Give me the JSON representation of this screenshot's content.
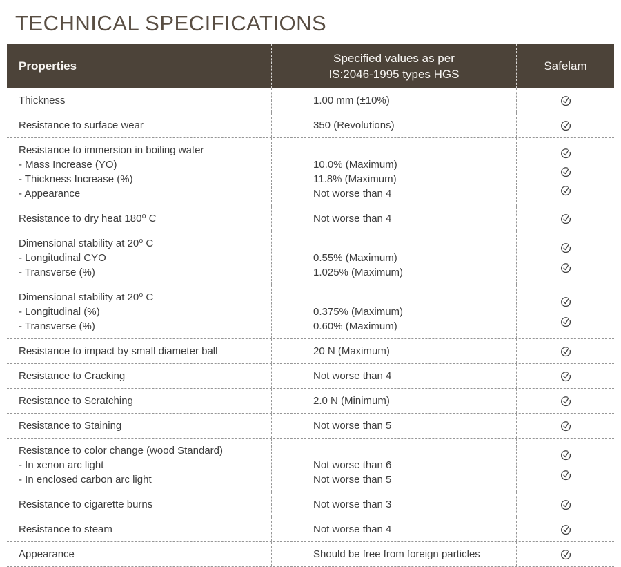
{
  "page": {
    "title": "TECHNICAL SPECIFICATIONS"
  },
  "colors": {
    "header_bg": "#4c4339",
    "header_text": "#f7f5f2",
    "title_color": "#594e43",
    "body_text": "#3d3d3d",
    "divider": "#979797",
    "check_color": "#404040"
  },
  "table": {
    "headers": {
      "properties": "Properties",
      "specified_line1": "Specified values as per",
      "specified_line2": "IS:2046-1995 types HGS",
      "safelam": "Safelam"
    },
    "rows": [
      {
        "property": [
          "Thickness"
        ],
        "value": [
          "1.00 mm (±10%)"
        ],
        "checks": 1
      },
      {
        "property": [
          "Resistance to surface wear"
        ],
        "value": [
          "350 (Revolutions)"
        ],
        "checks": 1
      },
      {
        "property": [
          "Resistance to immersion in boiling water",
          "- Mass Increase (YO)",
          "- Thickness Increase (%)",
          "- Appearance"
        ],
        "value": [
          "",
          "10.0% (Maximum)",
          "11.8% (Maximum)",
          "Not worse than 4"
        ],
        "checks": 3
      },
      {
        "property": [
          "Resistance to dry heat 180⁰ C"
        ],
        "value": [
          "Not worse than 4"
        ],
        "checks": 1
      },
      {
        "property": [
          "Dimensional stability at 20⁰ C",
          "- Longitudinal CYO",
          "- Transverse (%)"
        ],
        "value": [
          "",
          "0.55% (Maximum)",
          "1.025% (Maximum)"
        ],
        "checks": 2
      },
      {
        "property": [
          "Dimensional stability at 20⁰ C",
          "- Longitudinal (%)",
          "- Transverse (%)"
        ],
        "value": [
          "",
          "0.375% (Maximum)",
          "0.60% (Maximum)"
        ],
        "checks": 2
      },
      {
        "property": [
          "Resistance to impact by small diameter ball"
        ],
        "value": [
          "20 N (Maximum)"
        ],
        "checks": 1
      },
      {
        "property": [
          "Resistance to Cracking"
        ],
        "value": [
          "Not worse than 4"
        ],
        "checks": 1
      },
      {
        "property": [
          "Resistance to Scratching"
        ],
        "value": [
          "2.0 N (Minimum)"
        ],
        "checks": 1
      },
      {
        "property": [
          "Resistance to Staining"
        ],
        "value": [
          "Not worse than 5"
        ],
        "checks": 1
      },
      {
        "property": [
          "Resistance to color change (wood Standard)",
          "- In xenon arc light",
          "- In enclosed carbon arc light"
        ],
        "value": [
          "",
          "Not worse than 6",
          "Not worse than 5"
        ],
        "checks": 2
      },
      {
        "property": [
          "Resistance to cigarette burns"
        ],
        "value": [
          "Not worse than 3"
        ],
        "checks": 1
      },
      {
        "property": [
          "Resistance to steam"
        ],
        "value": [
          "Not worse than 4"
        ],
        "checks": 1
      },
      {
        "property": [
          "Appearance"
        ],
        "value": [
          "Should be free from foreign particles"
        ],
        "checks": 1
      }
    ]
  }
}
